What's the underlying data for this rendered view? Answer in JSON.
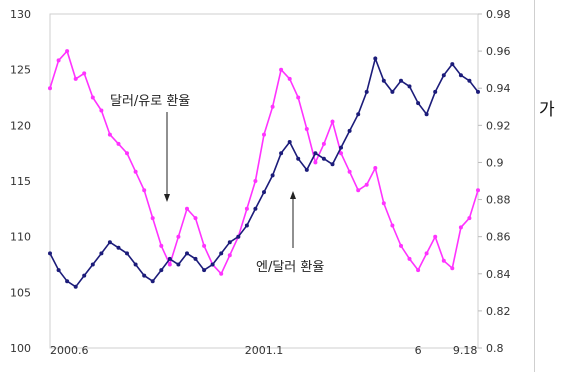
{
  "chart_data": {
    "type": "line",
    "colors": {
      "pink": "#ff33ff",
      "navy": "#1c1c7a"
    },
    "y_left": {
      "ylim": [
        100,
        130
      ],
      "ticks": [
        "130",
        "125",
        "120",
        "115",
        "110",
        "105",
        "100"
      ]
    },
    "y_right": {
      "ylim": [
        0.8,
        0.98
      ],
      "ticks": [
        "0.98",
        "0.96",
        "0.94",
        "0.92",
        "0.9",
        "0.88",
        "0.86",
        "0.84",
        "0.82",
        "0.8"
      ]
    },
    "x_ticks": [
      {
        "label": "2000.6",
        "t": 0.0
      },
      {
        "label": "2001.1",
        "t": 0.5
      },
      {
        "label": "6",
        "t": 0.86
      },
      {
        "label": "9.18",
        "t": 0.97
      }
    ],
    "annotations": {
      "dollar_euro": "달러/유로 환율",
      "yen_dollar": "엔/달러 환율"
    },
    "series": [
      {
        "name": "달러/유로 환율",
        "axis": "right",
        "color": "#ff33ff",
        "t": [
          0.0,
          0.02,
          0.04,
          0.06,
          0.08,
          0.1,
          0.12,
          0.14,
          0.16,
          0.18,
          0.2,
          0.22,
          0.24,
          0.26,
          0.28,
          0.3,
          0.32,
          0.34,
          0.36,
          0.38,
          0.4,
          0.42,
          0.44,
          0.46,
          0.48,
          0.5,
          0.52,
          0.54,
          0.56,
          0.58,
          0.6,
          0.62,
          0.64,
          0.66,
          0.68,
          0.7,
          0.72,
          0.74,
          0.76,
          0.78,
          0.8,
          0.82,
          0.84,
          0.86,
          0.88,
          0.9,
          0.92,
          0.94,
          0.96,
          0.98,
          1.0
        ],
        "values": [
          0.94,
          0.955,
          0.96,
          0.945,
          0.948,
          0.935,
          0.928,
          0.915,
          0.91,
          0.905,
          0.895,
          0.885,
          0.87,
          0.855,
          0.845,
          0.86,
          0.875,
          0.87,
          0.855,
          0.845,
          0.84,
          0.85,
          0.86,
          0.875,
          0.89,
          0.915,
          0.93,
          0.95,
          0.945,
          0.935,
          0.918,
          0.9,
          0.91,
          0.922,
          0.905,
          0.895,
          0.885,
          0.888,
          0.897,
          0.878,
          0.866,
          0.855,
          0.848,
          0.842,
          0.851,
          0.86,
          0.847,
          0.843,
          0.865,
          0.87,
          0.885
        ]
      },
      {
        "name": "엔/달러 환율",
        "axis": "left",
        "color": "#1c1c7a",
        "t": [
          0.0,
          0.02,
          0.04,
          0.06,
          0.08,
          0.1,
          0.12,
          0.14,
          0.16,
          0.18,
          0.2,
          0.22,
          0.24,
          0.26,
          0.28,
          0.3,
          0.32,
          0.34,
          0.36,
          0.38,
          0.4,
          0.42,
          0.44,
          0.46,
          0.48,
          0.5,
          0.52,
          0.54,
          0.56,
          0.58,
          0.6,
          0.62,
          0.64,
          0.66,
          0.68,
          0.7,
          0.72,
          0.74,
          0.76,
          0.78,
          0.8,
          0.82,
          0.84,
          0.86,
          0.88,
          0.9,
          0.92,
          0.94,
          0.96,
          0.98,
          1.0
        ],
        "values": [
          108.5,
          107.0,
          106.0,
          105.5,
          106.5,
          107.5,
          108.5,
          109.5,
          109.0,
          108.5,
          107.5,
          106.5,
          106.0,
          107.0,
          108.0,
          107.5,
          108.5,
          108.0,
          107.0,
          107.5,
          108.5,
          109.5,
          110.0,
          111.0,
          112.5,
          114.0,
          115.5,
          117.5,
          118.5,
          117.0,
          116.0,
          117.5,
          117.0,
          116.5,
          118.0,
          119.5,
          121.0,
          123.0,
          126.0,
          124.0,
          123.0,
          124.0,
          123.5,
          122.0,
          121.0,
          123.0,
          124.5,
          125.5,
          124.5,
          124.0,
          123.0
        ]
      }
    ]
  },
  "side_text": "가"
}
